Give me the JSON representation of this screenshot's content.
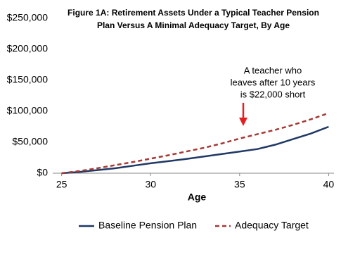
{
  "chart_data": {
    "type": "line",
    "title": [
      "Figure 1A: Retirement Assets Under a Typical Teacher Pension",
      "Plan Versus A Minimal Adequacy Target, By Age"
    ],
    "x_label": "Age",
    "x": [
      25,
      26,
      27,
      28,
      29,
      30,
      31,
      32,
      33,
      34,
      35,
      36,
      37,
      38,
      39,
      40
    ],
    "series": [
      {
        "name": "Baseline Pension Plan",
        "color": "#1f3864",
        "dash": false,
        "values": [
          0,
          2000,
          5000,
          8000,
          12000,
          16000,
          19500,
          23000,
          27000,
          31000,
          35000,
          39000,
          46000,
          55000,
          64000,
          75000
        ]
      },
      {
        "name": "Adequacy Target",
        "color": "#a33a36",
        "dash": true,
        "values": [
          0,
          3500,
          8000,
          13000,
          18000,
          23500,
          29000,
          35000,
          41000,
          48000,
          56000,
          63000,
          70000,
          78000,
          87000,
          97000
        ]
      }
    ],
    "xlim": [
      24.5,
      40.3
    ],
    "xticks": [
      25,
      30,
      35,
      40
    ],
    "ylim": [
      0,
      250000
    ],
    "yticks": [
      {
        "value": 0,
        "label": "$0"
      },
      {
        "value": 50000,
        "label": "$50,000"
      },
      {
        "value": 100000,
        "label": "$100,000"
      },
      {
        "value": 150000,
        "label": "$150,000"
      },
      {
        "value": 200000,
        "label": "$200,000"
      },
      {
        "value": 250000,
        "label": "$250,000"
      }
    ],
    "grid": false,
    "legend": "bottom",
    "annotation": [
      "A teacher who",
      "leaves after 10 years",
      "is $22,000 short"
    ]
  }
}
